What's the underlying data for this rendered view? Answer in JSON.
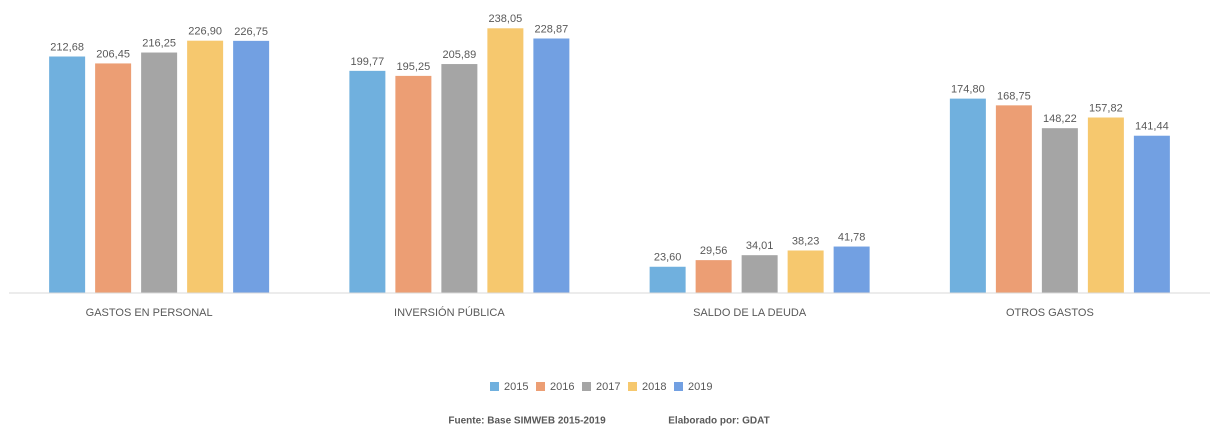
{
  "chart_data": {
    "type": "bar",
    "categories": [
      "GASTOS EN PERSONAL",
      "INVERSIÓN PÚBLICA",
      "SALDO DE LA DEUDA",
      "OTROS GASTOS"
    ],
    "series": [
      {
        "name": "2015",
        "color": "#70b0de",
        "values": [
          212.68,
          199.77,
          23.6,
          174.8
        ],
        "value_labels": [
          "212,68",
          "199,77",
          "23,60",
          "174,80"
        ]
      },
      {
        "name": "2016",
        "color": "#ec9e74",
        "values": [
          206.45,
          195.25,
          29.56,
          168.75
        ],
        "value_labels": [
          "206,45",
          "195,25",
          "29,56",
          "168,75"
        ]
      },
      {
        "name": "2017",
        "color": "#a5a5a5",
        "values": [
          216.25,
          205.89,
          34.01,
          148.22
        ],
        "value_labels": [
          "216,25",
          "205,89",
          "34,01",
          "148,22"
        ]
      },
      {
        "name": "2018",
        "color": "#f6c86e",
        "values": [
          226.9,
          238.05,
          38.23,
          157.82
        ],
        "value_labels": [
          "226,90",
          "238,05",
          "38,23",
          "157,82"
        ]
      },
      {
        "name": "2019",
        "color": "#72a0e2",
        "values": [
          226.75,
          228.87,
          41.78,
          141.44
        ],
        "value_labels": [
          "226,75",
          "228,87",
          "41,78",
          "141,44"
        ]
      }
    ],
    "ylim": [
      0,
      250
    ],
    "legend": "bottom",
    "footnotes": [
      "Fuente: Base SIMWEB 2015-2019",
      "Elaborado por: GDAT"
    ]
  }
}
